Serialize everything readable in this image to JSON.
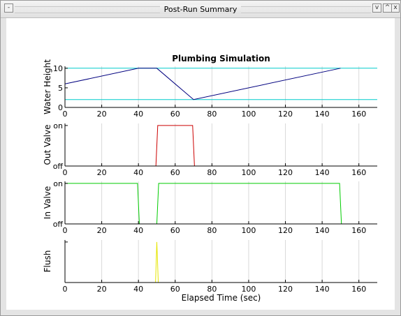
{
  "window": {
    "title": "Post-Run Summary",
    "buttons": {
      "left": "-",
      "minimize": "v",
      "maximize": "^",
      "close": "x"
    }
  },
  "chart_data": [
    {
      "type": "line",
      "title": "Plumbing Simulation",
      "ylabel": "Water Height",
      "xlabel": "",
      "xlim": [
        0,
        170
      ],
      "ylim": [
        0,
        10.5
      ],
      "xticks": [
        0,
        20,
        40,
        60,
        80,
        100,
        120,
        140,
        160
      ],
      "yticks": [
        0,
        5,
        10
      ],
      "ytick_labels": [
        "0",
        "5",
        "10"
      ],
      "grid": "vertical",
      "reference_lines": [
        {
          "y": 10,
          "color": "#00cccc"
        },
        {
          "y": 2,
          "color": "#00cccc"
        }
      ],
      "series": [
        {
          "color": "#00007f",
          "x": [
            0,
            40,
            50,
            70,
            150
          ],
          "y": [
            6,
            10,
            10,
            2,
            10
          ]
        }
      ]
    },
    {
      "type": "line",
      "ylabel": "Out Valve",
      "xlabel": "",
      "xlim": [
        0,
        170
      ],
      "ylim": [
        0,
        1.05
      ],
      "xticks": [
        0,
        20,
        40,
        60,
        80,
        100,
        120,
        140,
        160
      ],
      "yticks": [
        0,
        1
      ],
      "ytick_labels": [
        "off",
        "on"
      ],
      "grid": "vertical",
      "series": [
        {
          "color": "#cc0000",
          "x": [
            0,
            49.5,
            50.5,
            69.5,
            70.5,
            170
          ],
          "y": [
            0,
            0,
            1,
            1,
            0,
            0
          ]
        }
      ]
    },
    {
      "type": "line",
      "ylabel": "In Valve",
      "xlabel": "",
      "xlim": [
        0,
        170
      ],
      "ylim": [
        0,
        1.05
      ],
      "xticks": [
        0,
        20,
        40,
        60,
        80,
        100,
        120,
        140,
        160
      ],
      "yticks": [
        0,
        1
      ],
      "ytick_labels": [
        "off",
        "on"
      ],
      "grid": "vertical",
      "series": [
        {
          "color": "#00cc00",
          "x": [
            0,
            39.5,
            40.5,
            50,
            51,
            149.5,
            150.5,
            170
          ],
          "y": [
            1,
            1,
            0,
            0,
            1,
            1,
            0,
            0
          ]
        }
      ]
    },
    {
      "type": "line",
      "ylabel": "Flush",
      "xlabel": "Elapsed Time (sec)",
      "xlim": [
        0,
        170
      ],
      "ylim": [
        0,
        1.05
      ],
      "xticks": [
        0,
        20,
        40,
        60,
        80,
        100,
        120,
        140,
        160
      ],
      "yticks": [
        0,
        1
      ],
      "ytick_labels": [
        "",
        ""
      ],
      "grid": "vertical",
      "series": [
        {
          "color": "#e6e600",
          "x": [
            0,
            49.3,
            50,
            50.8,
            170
          ],
          "y": [
            0,
            0,
            1,
            0,
            0
          ]
        }
      ]
    }
  ]
}
